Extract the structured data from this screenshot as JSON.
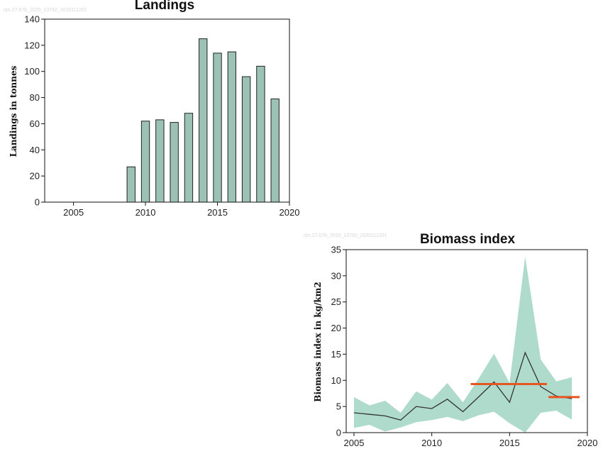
{
  "chart_data": [
    {
      "type": "bar",
      "title": "Landings",
      "watermark": "rjm.27.67b_2020_13782_2020111201",
      "ylabel": "Landings in tonnes",
      "xlabel": "",
      "xlim": [
        2003,
        2020
      ],
      "ylim": [
        0,
        140
      ],
      "x_ticks": [
        2005,
        2010,
        2015,
        2020
      ],
      "y_ticks": [
        0,
        20,
        40,
        60,
        80,
        100,
        120,
        140
      ],
      "categories": [
        2009,
        2010,
        2011,
        2012,
        2013,
        2014,
        2015,
        2016,
        2017,
        2018,
        2019
      ],
      "values": [
        27,
        62,
        63,
        61,
        68,
        125,
        114,
        115,
        96,
        104,
        79
      ],
      "bar_color": "#9bc2b4",
      "grid": false
    },
    {
      "type": "line",
      "title": "Biomass index",
      "watermark": "rjm.27.67b_2020_13782_2020111201",
      "ylabel": "Biomass index in kg/km2",
      "xlabel": "",
      "xlim": [
        2004.5,
        2020
      ],
      "ylim": [
        0,
        35
      ],
      "x_ticks": [
        2005,
        2010,
        2015,
        2020
      ],
      "y_ticks": [
        0,
        5,
        10,
        15,
        20,
        25,
        30,
        35
      ],
      "x": [
        2005,
        2006,
        2007,
        2008,
        2009,
        2010,
        2011,
        2012,
        2013,
        2014,
        2015,
        2016,
        2017,
        2018,
        2019
      ],
      "values": [
        3.8,
        3.5,
        3.2,
        2.4,
        5.0,
        4.6,
        6.4,
        4.0,
        6.8,
        9.7,
        5.8,
        15.3,
        8.8,
        7.0,
        6.5
      ],
      "upper": [
        6.8,
        5.2,
        6.1,
        3.8,
        7.9,
        6.3,
        9.5,
        5.8,
        10.3,
        15.1,
        9.5,
        33.7,
        14.0,
        9.8,
        10.6
      ],
      "lower": [
        0.9,
        1.5,
        0.2,
        1.0,
        2.0,
        2.4,
        3.0,
        2.2,
        3.3,
        4.0,
        1.8,
        -0.5,
        3.8,
        4.2,
        2.5
      ],
      "reference_segments": [
        {
          "x_start": 2012.5,
          "x_end": 2017.4,
          "value": 9.3
        },
        {
          "x_start": 2017.5,
          "x_end": 2019.5,
          "value": 6.8
        }
      ],
      "line_color": "#333333",
      "band_color": "#aedbcb",
      "reference_color": "#e8561f",
      "grid": false
    }
  ]
}
